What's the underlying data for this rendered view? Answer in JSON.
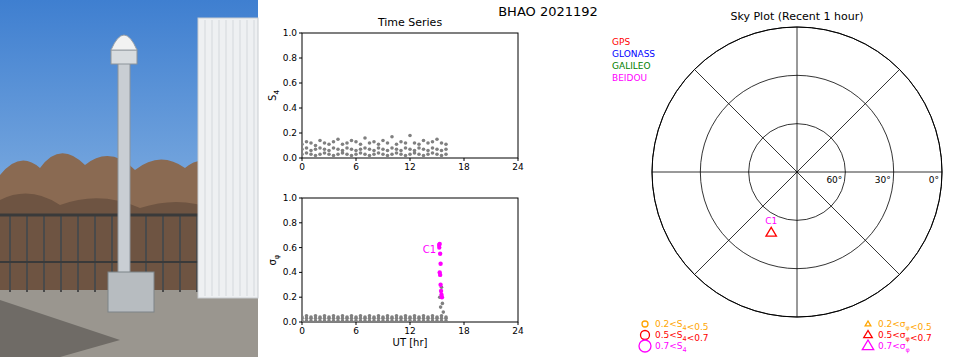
{
  "figure_title": "BHAO 2021192",
  "chart_data": [
    {
      "type": "scatter",
      "title": "Time Series",
      "ylabel": "S4",
      "xlim": [
        0,
        24
      ],
      "xticks": [
        0,
        6,
        12,
        18,
        24
      ],
      "ylim": [
        0,
        1
      ],
      "yticks": [
        {
          "value": 0,
          "label": "0.0"
        },
        {
          "value": 0.2,
          "label": "0.2"
        },
        {
          "value": 0.4,
          "label": "0.4"
        },
        {
          "value": 0.6,
          "label": "0.6"
        },
        {
          "value": 0.8,
          "label": "0.8"
        },
        {
          "value": 1,
          "label": "1.0"
        }
      ],
      "grid": false,
      "legend": "right",
      "marker": "circle",
      "series": [
        {
          "color": "#808080",
          "x": [
            0,
            0,
            0,
            0.5,
            0.5,
            0.5,
            1,
            1,
            1,
            1.5,
            1.5,
            1.5,
            2,
            2,
            2,
            2.5,
            2.5,
            2.5,
            3,
            3,
            3,
            3.5,
            3.5,
            3.5,
            4,
            4,
            4,
            4.5,
            4.5,
            4.5,
            5,
            5,
            5,
            5.5,
            5.5,
            5.5,
            6,
            6,
            6,
            6.5,
            6.5,
            6.5,
            7,
            7,
            7,
            7.5,
            7.5,
            7.5,
            8,
            8,
            8,
            8.5,
            8.5,
            8.5,
            9,
            9,
            9,
            9.5,
            9.5,
            9.5,
            10,
            10,
            10,
            10.5,
            10.5,
            10.5,
            11,
            11,
            11,
            11.5,
            11.5,
            11.5,
            12,
            12,
            12,
            12.5,
            12.5,
            12.5,
            13,
            13,
            13,
            13.5,
            13.5,
            13.5,
            14,
            14,
            14,
            14.5,
            14.5,
            14.5,
            15,
            15,
            15,
            15.5,
            15.5,
            15.5,
            16,
            16,
            16
          ],
          "values": [
            0.03,
            0.07,
            0.11,
            0.04,
            0.08,
            0.13,
            0.03,
            0.06,
            0.12,
            0.02,
            0.07,
            0.1,
            0.03,
            0.08,
            0.14,
            0.04,
            0.07,
            0.12,
            0.03,
            0.06,
            0.11,
            0.02,
            0.08,
            0.13,
            0.03,
            0.07,
            0.15,
            0.04,
            0.06,
            0.11,
            0.03,
            0.08,
            0.12,
            0.02,
            0.07,
            0.14,
            0.03,
            0.06,
            0.13,
            0.04,
            0.07,
            0.11,
            0.03,
            0.08,
            0.16,
            0.02,
            0.07,
            0.12,
            0.03,
            0.06,
            0.13,
            0.04,
            0.08,
            0.11,
            0.03,
            0.07,
            0.14,
            0.02,
            0.06,
            0.12,
            0.03,
            0.08,
            0.17,
            0.04,
            0.07,
            0.11,
            0.03,
            0.06,
            0.13,
            0.02,
            0.08,
            0.12,
            0.03,
            0.07,
            0.18,
            0.04,
            0.06,
            0.12,
            0.03,
            0.08,
            0.11,
            0.02,
            0.07,
            0.14,
            0.03,
            0.06,
            0.12,
            0.04,
            0.08,
            0.13,
            0.03,
            0.07,
            0.15,
            0.02,
            0.06,
            0.12,
            0.03,
            0.07,
            0.11
          ]
        },
        {
          "name": "GPS",
          "color": "#ff0000",
          "x": [],
          "values": []
        },
        {
          "name": "GLONASS",
          "color": "#0000ff",
          "x": [],
          "values": []
        },
        {
          "name": "GALILEO",
          "color": "#008000",
          "x": [],
          "values": []
        }
      ]
    },
    {
      "type": "scatter",
      "ylabel": "σφ",
      "xlabel": "UT [hr]",
      "xlim": [
        0,
        24
      ],
      "xticks": [
        0,
        6,
        12,
        18,
        24
      ],
      "ylim": [
        0,
        1
      ],
      "yticks": [
        {
          "value": 0,
          "label": "0.0"
        },
        {
          "value": 0.2,
          "label": "0.2"
        },
        {
          "value": 0.4,
          "label": "0.4"
        },
        {
          "value": 0.6,
          "label": "0.6"
        },
        {
          "value": 0.8,
          "label": "0.8"
        },
        {
          "value": 1,
          "label": "1.0"
        }
      ],
      "grid": false,
      "marker": "circle",
      "annotations": [
        {
          "text": "C1",
          "x": 14.9,
          "y": 0.56,
          "color": "#ff00ff"
        }
      ],
      "series": [
        {
          "color": "#808080",
          "x": [
            0,
            0,
            0,
            0.5,
            0.5,
            0.5,
            1,
            1,
            1,
            1.5,
            1.5,
            1.5,
            2,
            2,
            2,
            2.5,
            2.5,
            2.5,
            3,
            3,
            3,
            3.5,
            3.5,
            3.5,
            4,
            4,
            4,
            4.5,
            4.5,
            4.5,
            5,
            5,
            5,
            5.5,
            5.5,
            5.5,
            6,
            6,
            6,
            6.5,
            6.5,
            6.5,
            7,
            7,
            7,
            7.5,
            7.5,
            7.5,
            8,
            8,
            8,
            8.5,
            8.5,
            8.5,
            9,
            9,
            9,
            9.5,
            9.5,
            9.5,
            10,
            10,
            10,
            10.5,
            10.5,
            10.5,
            11,
            11,
            11,
            11.5,
            11.5,
            11.5,
            12,
            12,
            12,
            12.5,
            12.5,
            12.5,
            13,
            13,
            13,
            13.5,
            13.5,
            13.5,
            14,
            14,
            14,
            14.5,
            14.5,
            14.5,
            15,
            15,
            15,
            15.5,
            15.5,
            15.5,
            16,
            16,
            16,
            15.3,
            15.4,
            15.5,
            15.6,
            15.7
          ],
          "values": [
            0.01,
            0.03,
            0.04,
            0.01,
            0.03,
            0.05,
            0.01,
            0.03,
            0.04,
            0.01,
            0.03,
            0.05,
            0.01,
            0.03,
            0.04,
            0.01,
            0.03,
            0.05,
            0.01,
            0.03,
            0.04,
            0.01,
            0.03,
            0.05,
            0.01,
            0.03,
            0.04,
            0.01,
            0.03,
            0.05,
            0.01,
            0.03,
            0.04,
            0.01,
            0.03,
            0.05,
            0.01,
            0.03,
            0.04,
            0.01,
            0.03,
            0.05,
            0.01,
            0.03,
            0.04,
            0.01,
            0.03,
            0.05,
            0.01,
            0.03,
            0.04,
            0.01,
            0.03,
            0.05,
            0.01,
            0.03,
            0.04,
            0.01,
            0.03,
            0.05,
            0.01,
            0.03,
            0.04,
            0.01,
            0.03,
            0.05,
            0.01,
            0.03,
            0.04,
            0.01,
            0.03,
            0.05,
            0.01,
            0.03,
            0.04,
            0.01,
            0.03,
            0.05,
            0.01,
            0.03,
            0.04,
            0.01,
            0.03,
            0.05,
            0.01,
            0.03,
            0.04,
            0.01,
            0.03,
            0.05,
            0.01,
            0.03,
            0.04,
            0.01,
            0.03,
            0.05,
            0.01,
            0.03,
            0.04,
            0.2,
            0.12,
            0.28,
            0.15,
            0.08
          ]
        },
        {
          "name": "BEIDOU",
          "color": "#ff00ff",
          "x": [
            15.2,
            15.25,
            15.3,
            15.3,
            15.35,
            15.35,
            15.4,
            15.4,
            15.45,
            15.5,
            15.55
          ],
          "values": [
            0.62,
            0.6,
            0.63,
            0.4,
            0.55,
            0.38,
            0.47,
            0.3,
            0.25,
            0.22,
            0.2
          ]
        }
      ]
    },
    {
      "type": "sky",
      "title": "Sky Plot (Recent 1 hour)",
      "rlim": [
        90,
        0
      ],
      "rticks": [
        {
          "value": 60,
          "label": "60°"
        },
        {
          "value": 30,
          "label": "30°"
        },
        {
          "value": 0,
          "label": "0°"
        }
      ],
      "series": [
        {
          "name": "C1",
          "color": "#ff00ff",
          "azimuth": [
            203
          ],
          "elevation": [
            49
          ],
          "sigma_phi": [
            0.63
          ]
        }
      ],
      "marker_legend": [
        {
          "label": "0.2<S4<0.5",
          "min": 0.2,
          "max": 0.5,
          "marker": "circle",
          "color": "#ffa500"
        },
        {
          "label": "0.5<S4<0.7",
          "min": 0.5,
          "max": 0.7,
          "marker": "circle",
          "color": "#ff0000"
        },
        {
          "label": "0.7<S4",
          "min": 0.7,
          "marker": "circle",
          "color": "#ff00ff"
        },
        {
          "label": "0.2<σφ<0.5",
          "min": 0.2,
          "max": 0.5,
          "marker": "triangle",
          "color": "#ffa500"
        },
        {
          "label": "0.5<σφ<0.7",
          "min": 0.5,
          "max": 0.7,
          "marker": "triangle",
          "color": "#ff0000"
        },
        {
          "label": "0.7<σφ",
          "min": 0.7,
          "marker": "triangle",
          "color": "#ff00ff"
        }
      ]
    }
  ]
}
